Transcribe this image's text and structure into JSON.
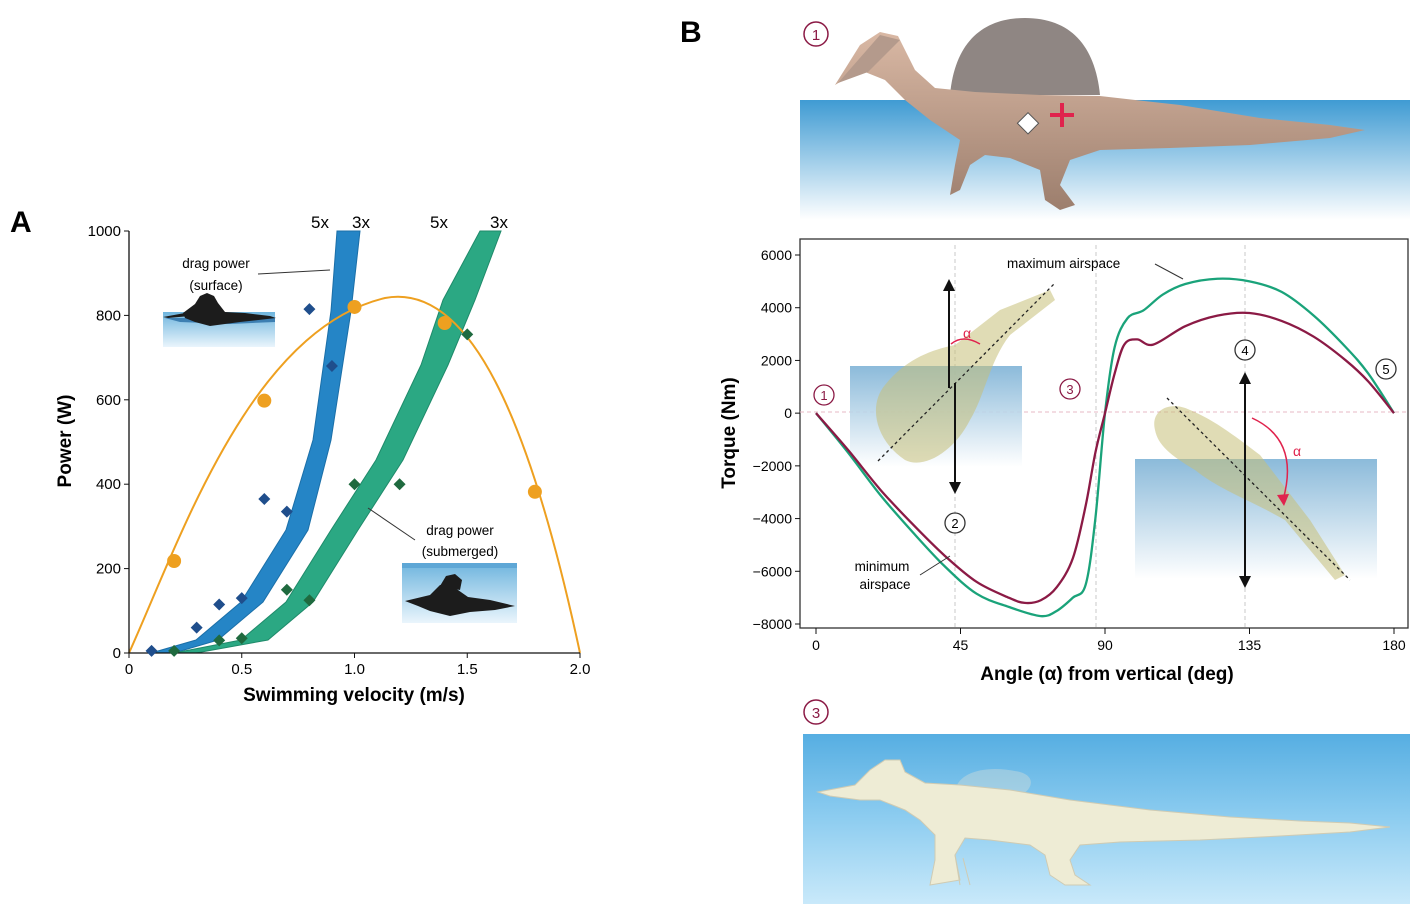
{
  "panel_a": {
    "letter": "A",
    "xlabel": "Swimming velocity (m/s)",
    "ylabel": "Power (W)",
    "band_labels": [
      "5x",
      "3x",
      "5x",
      "3x"
    ],
    "label_surface": [
      "drag power",
      "(surface)"
    ],
    "label_submerged": [
      "drag power",
      "(submerged)"
    ],
    "colors": {
      "surface": "#2585c6",
      "submerged": "#2ba883",
      "generated": "#eea020",
      "marker_blue": "#1f4e8c",
      "marker_green": "#1f6a3f"
    }
  },
  "panel_b": {
    "letter": "B",
    "xlabel": "Angle (α) from vertical (deg)",
    "ylabel": "Torque (Nm)",
    "label_max": "maximum airspace",
    "label_min": [
      "minimum",
      "airspace"
    ],
    "alpha": "α",
    "markers": [
      "1",
      "2",
      "3",
      "4",
      "5"
    ],
    "inset_top_marker": "1",
    "inset_bottom_marker": "3",
    "colors": {
      "max": "#1aa37a",
      "min": "#8b1a45"
    }
  },
  "chart_data": [
    {
      "type": "scatter",
      "xlabel": "Swimming velocity (m/s)",
      "ylabel": "Power (W)",
      "xlim": [
        0,
        2.0
      ],
      "ylim": [
        0,
        1000
      ],
      "xticks": [
        "0",
        "0.5",
        "1.0",
        "1.5",
        "2.0"
      ],
      "yticks": [
        "0",
        "200",
        "400",
        "600",
        "800",
        "1000"
      ],
      "series": [
        {
          "x": [
            0,
            0.2,
            0.6,
            1.0,
            1.4,
            1.8,
            2.0
          ],
          "y": [
            0,
            218,
            598,
            820,
            782,
            382,
            0
          ]
        },
        {
          "name": "drag power (surface)",
          "x": [
            0.1,
            0.3,
            0.4,
            0.5,
            0.6,
            0.7,
            0.8,
            0.9
          ],
          "y": [
            5,
            60,
            115,
            130,
            365,
            335,
            815,
            680
          ]
        },
        {
          "name": "drag power (submerged)",
          "x": [
            0.2,
            0.4,
            0.5,
            0.7,
            0.8,
            1.0,
            1.2,
            1.5
          ],
          "y": [
            5,
            30,
            35,
            150,
            125,
            400,
            400,
            755
          ]
        }
      ]
    },
    {
      "type": "line",
      "xlabel": "Angle (α) from vertical (deg)",
      "ylabel": "Torque (Nm)",
      "xlim": [
        0,
        180
      ],
      "ylim": [
        -8000,
        6000
      ],
      "xticks": [
        "0",
        "45",
        "90",
        "135",
        "180"
      ],
      "yticks": [
        "−8000",
        "−6000",
        "−4000",
        "−2000",
        "0",
        "2000",
        "4000",
        "6000"
      ],
      "series": [
        {
          "name": "maximum airspace",
          "x": [
            0,
            10,
            20,
            30,
            40,
            50,
            60,
            70,
            75,
            80,
            84,
            87,
            90,
            93,
            97,
            102,
            108,
            115,
            125,
            135,
            145,
            155,
            165,
            172,
            180
          ],
          "y": [
            0,
            -1500,
            -3100,
            -4500,
            -5800,
            -6850,
            -7350,
            -7700,
            -7500,
            -7000,
            -6500,
            -4000,
            0,
            2500,
            3600,
            3900,
            4500,
            4900,
            5100,
            5000,
            4600,
            3700,
            2500,
            1500,
            0
          ]
        },
        {
          "name": "minimum airspace",
          "x": [
            0,
            10,
            20,
            30,
            40,
            50,
            60,
            65,
            70,
            75,
            80,
            84,
            87,
            90,
            93,
            96,
            100,
            105,
            115,
            125,
            135,
            145,
            155,
            165,
            172,
            180
          ],
          "y": [
            0,
            -1400,
            -2900,
            -4200,
            -5400,
            -6400,
            -7000,
            -7200,
            -7100,
            -6600,
            -5500,
            -3500,
            -1500,
            0,
            1500,
            2600,
            2800,
            2600,
            3300,
            3700,
            3800,
            3500,
            2900,
            2000,
            1200,
            0
          ]
        }
      ]
    }
  ]
}
